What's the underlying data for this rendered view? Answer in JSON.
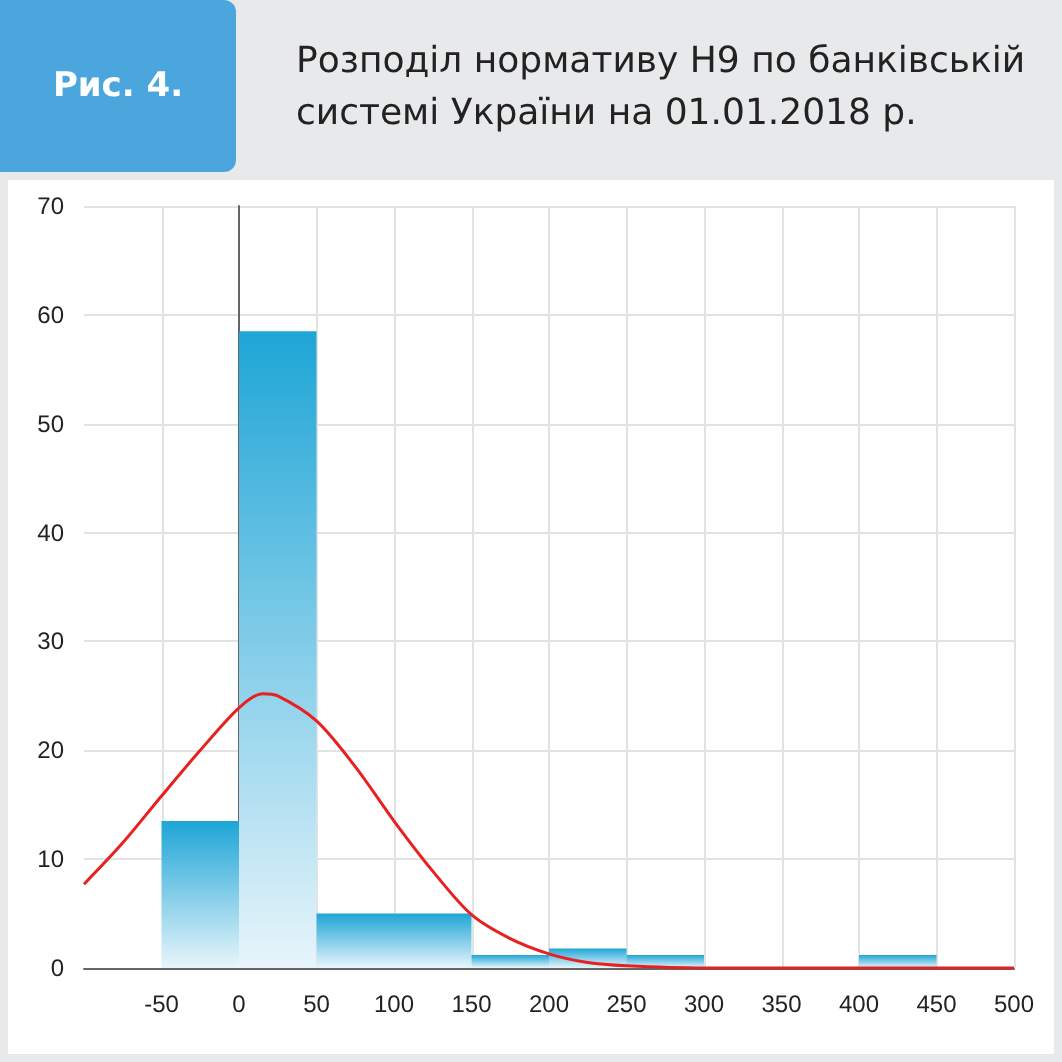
{
  "chart_data": {
    "type": "histogram",
    "title": "Розподіл нормативу Н9 по банківській системі України на 01.01.2018 р.",
    "annotations": [
      "Рис. 4."
    ],
    "bins": [
      -50,
      0,
      50,
      100,
      150,
      200,
      250,
      300,
      350,
      400,
      450
    ],
    "values": [
      13.5,
      58.5,
      5,
      5,
      1.2,
      1.8,
      1.2,
      0,
      0,
      1.2
    ],
    "color": "#1ea5d6",
    "series": [
      {
        "type": "line",
        "color": "#e8201f",
        "x": [
          -100,
          -75,
          -50,
          -25,
          0,
          15,
          25,
          50,
          75,
          100,
          125,
          150,
          175,
          200,
          225,
          250,
          300,
          400,
          500
        ],
        "values": [
          7.7,
          11.5,
          15.8,
          20,
          23.9,
          25.2,
          25,
          22.7,
          18.5,
          13.5,
          8.9,
          4.9,
          2.7,
          1.3,
          0.5,
          0.2,
          0,
          0,
          0
        ]
      }
    ],
    "xlim": [
      -100,
      500
    ],
    "xticks": [
      -50,
      0,
      50,
      100,
      150,
      200,
      250,
      300,
      350,
      400,
      450,
      500
    ],
    "ylim": [
      0,
      70
    ],
    "yticks": [
      0,
      10,
      20,
      30,
      40,
      50,
      60,
      70
    ],
    "grid": true,
    "marker": "none",
    "line_style": "solid"
  }
}
